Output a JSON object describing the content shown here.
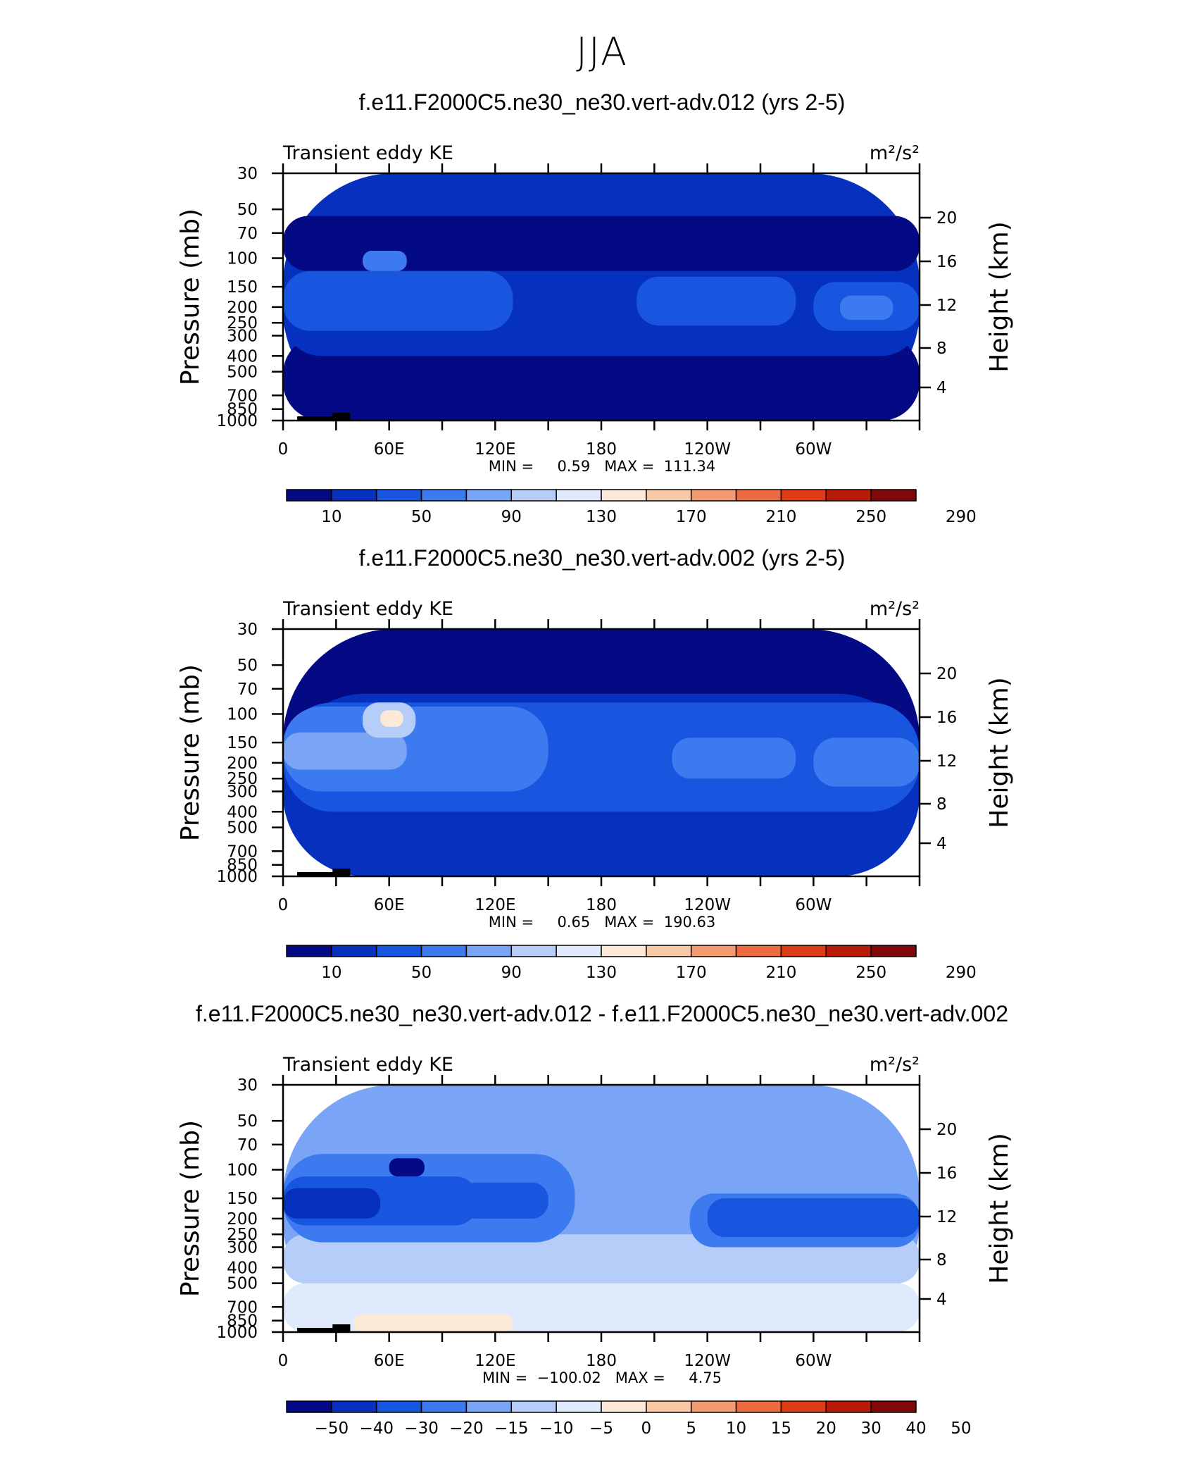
{
  "page": {
    "title": "JJA"
  },
  "chart_data": [
    {
      "type": "heatmap",
      "title": "f.e11.F2000C5.ne30_ne30.vert-adv.012 (yrs 2-5)",
      "left_label": "Transient eddy KE",
      "right_label": "m²/s²",
      "ylabel": "Pressure (mb)",
      "y2label": "Height (km)",
      "x_ticks": [
        "0",
        "60E",
        "120E",
        "180",
        "120W",
        "60W"
      ],
      "y_ticks": [
        "30",
        "50",
        "70",
        "100",
        "150",
        "200",
        "250",
        "300",
        "400",
        "500",
        "700",
        "850",
        "1000"
      ],
      "y2_ticks": [
        "20",
        "16",
        "12",
        "8",
        "4"
      ],
      "stats": "MIN =     0.59   MAX =  111.34",
      "min": 0.59,
      "max": 111.34,
      "colorbar_labels": [
        "10",
        "50",
        "90",
        "130",
        "170",
        "210",
        "250",
        "290"
      ],
      "colorbar_colors": [
        "#040a83",
        "#0631be",
        "#1856e0",
        "#3d7af0",
        "#7aa4f5",
        "#b5cdf8",
        "#dfeafc",
        "#fde9d8",
        "#f8c7a4",
        "#f39a70",
        "#ec6a40",
        "#dd3c14",
        "#b81b07",
        "#7f0808"
      ],
      "contours": [
        {
          "ll": [
            0,
            1000
          ],
          "ur": [
            360,
            30
          ],
          "level": 1
        },
        {
          "ll": [
            0,
            1000
          ],
          "ur": [
            360,
            300
          ],
          "level": 0
        },
        {
          "ll": [
            0,
            120
          ],
          "ur": [
            360,
            55
          ],
          "level": 0
        },
        {
          "ll": [
            0,
            400
          ],
          "ur": [
            360,
            120
          ],
          "level": 1
        },
        {
          "ll": [
            0,
            280
          ],
          "ur": [
            130,
            120
          ],
          "level": 2
        },
        {
          "ll": [
            200,
            260
          ],
          "ur": [
            290,
            130
          ],
          "level": 2
        },
        {
          "ll": [
            300,
            280
          ],
          "ur": [
            360,
            140
          ],
          "level": 2
        },
        {
          "ll": [
            45,
            120
          ],
          "ur": [
            70,
            90
          ],
          "level": 3
        },
        {
          "ll": [
            315,
            240
          ],
          "ur": [
            345,
            170
          ],
          "level": 3
        }
      ]
    },
    {
      "type": "heatmap",
      "title": "f.e11.F2000C5.ne30_ne30.vert-adv.002 (yrs 2-5)",
      "left_label": "Transient eddy KE",
      "right_label": "m²/s²",
      "ylabel": "Pressure (mb)",
      "y2label": "Height (km)",
      "x_ticks": [
        "0",
        "60E",
        "120E",
        "180",
        "120W",
        "60W"
      ],
      "y_ticks": [
        "30",
        "50",
        "70",
        "100",
        "150",
        "200",
        "250",
        "300",
        "400",
        "500",
        "700",
        "850",
        "1000"
      ],
      "y2_ticks": [
        "20",
        "16",
        "12",
        "8",
        "4"
      ],
      "stats": "MIN =     0.65   MAX =  190.63",
      "min": 0.65,
      "max": 190.63,
      "colorbar_labels": [
        "10",
        "50",
        "90",
        "130",
        "170",
        "210",
        "250",
        "290"
      ],
      "colorbar_colors": [
        "#040a83",
        "#0631be",
        "#1856e0",
        "#3d7af0",
        "#7aa4f5",
        "#b5cdf8",
        "#dfeafc",
        "#fde9d8",
        "#f8c7a4",
        "#f39a70",
        "#ec6a40",
        "#dd3c14",
        "#b81b07",
        "#7f0808"
      ],
      "contours": [
        {
          "ll": [
            0,
            1000
          ],
          "ur": [
            360,
            30
          ],
          "level": 0
        },
        {
          "ll": [
            0,
            1000
          ],
          "ur": [
            360,
            75
          ],
          "level": 1
        },
        {
          "ll": [
            0,
            400
          ],
          "ur": [
            360,
            85
          ],
          "level": 2
        },
        {
          "ll": [
            0,
            300
          ],
          "ur": [
            150,
            90
          ],
          "level": 3
        },
        {
          "ll": [
            220,
            250
          ],
          "ur": [
            290,
            140
          ],
          "level": 3
        },
        {
          "ll": [
            300,
            280
          ],
          "ur": [
            360,
            140
          ],
          "level": 3
        },
        {
          "ll": [
            0,
            220
          ],
          "ur": [
            70,
            130
          ],
          "level": 4
        },
        {
          "ll": [
            45,
            140
          ],
          "ur": [
            75,
            85
          ],
          "level": 5
        },
        {
          "ll": [
            55,
            120
          ],
          "ur": [
            68,
            95
          ],
          "level": 7
        }
      ]
    },
    {
      "type": "heatmap",
      "title": "f.e11.F2000C5.ne30_ne30.vert-adv.012 - f.e11.F2000C5.ne30_ne30.vert-adv.002",
      "left_label": "Transient eddy KE",
      "right_label": "m²/s²",
      "ylabel": "Pressure (mb)",
      "y2label": "Height (km)",
      "x_ticks": [
        "0",
        "60E",
        "120E",
        "180",
        "120W",
        "60W"
      ],
      "y_ticks": [
        "30",
        "50",
        "70",
        "100",
        "150",
        "200",
        "250",
        "300",
        "400",
        "500",
        "700",
        "850",
        "1000"
      ],
      "y2_ticks": [
        "20",
        "16",
        "12",
        "8",
        "4"
      ],
      "stats": "MIN =  −100.02   MAX =     4.75",
      "min": -100.02,
      "max": 4.75,
      "colorbar_labels": [
        "−50",
        "−40",
        "−30",
        "−20",
        "−15",
        "−10",
        "−5",
        "0",
        "5",
        "10",
        "15",
        "20",
        "30",
        "40",
        "50"
      ],
      "colorbar_colors": [
        "#040a83",
        "#0631be",
        "#1856e0",
        "#3d7af0",
        "#7aa4f5",
        "#b5cdf8",
        "#dfeafc",
        "#fde9d8",
        "#f8c7a4",
        "#f39a70",
        "#ec6a40",
        "#dd3c14",
        "#b81b07",
        "#7f0808"
      ],
      "contours": [
        {
          "ll": [
            0,
            1000
          ],
          "ur": [
            360,
            30
          ],
          "level": 4
        },
        {
          "ll": [
            0,
            1000
          ],
          "ur": [
            360,
            500
          ],
          "level": 6
        },
        {
          "ll": [
            0,
            500
          ],
          "ur": [
            360,
            250
          ],
          "level": 5
        },
        {
          "ll": [
            0,
            280
          ],
          "ur": [
            165,
            80
          ],
          "level": 3
        },
        {
          "ll": [
            230,
            300
          ],
          "ur": [
            360,
            140
          ],
          "level": 3
        },
        {
          "ll": [
            0,
            220
          ],
          "ur": [
            110,
            110
          ],
          "level": 2
        },
        {
          "ll": [
            100,
            200
          ],
          "ur": [
            150,
            120
          ],
          "level": 2
        },
        {
          "ll": [
            240,
            260
          ],
          "ur": [
            360,
            150
          ],
          "level": 2
        },
        {
          "ll": [
            0,
            200
          ],
          "ur": [
            55,
            130
          ],
          "level": 1
        },
        {
          "ll": [
            60,
            110
          ],
          "ur": [
            80,
            85
          ],
          "level": 0
        },
        {
          "ll": [
            40,
            1000
          ],
          "ur": [
            130,
            780
          ],
          "level": 7
        }
      ]
    }
  ]
}
